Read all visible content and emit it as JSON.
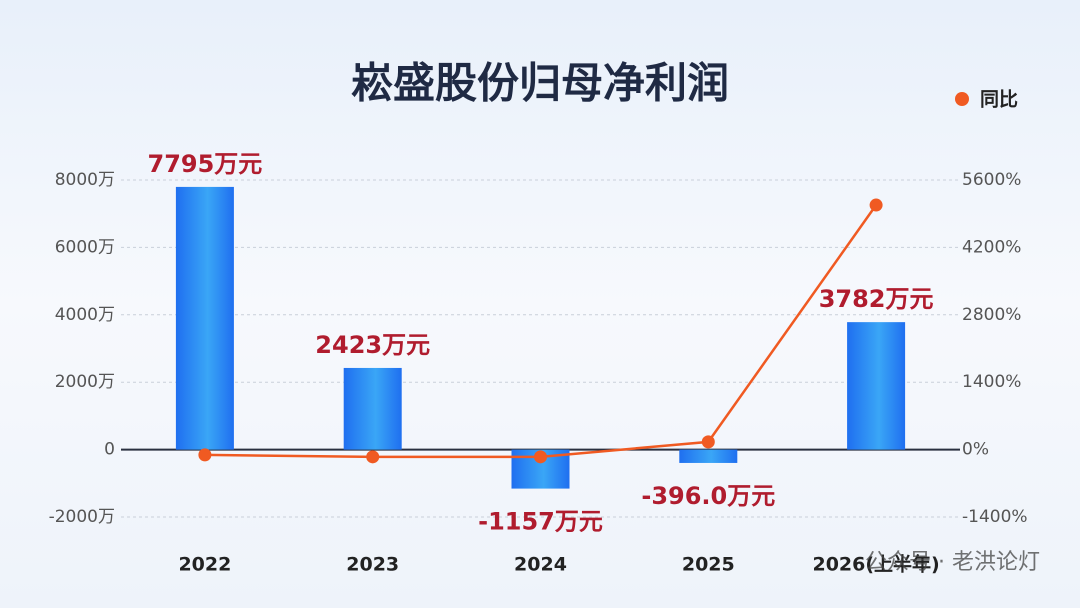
{
  "chart_data": {
    "type": "bar-line",
    "title": "崧盛股份归母净利润",
    "watermark": "公众号 · 老洪论灯",
    "categories": [
      "2022",
      "2023",
      "2024",
      "2025",
      "2026(上半年)"
    ],
    "series": [
      {
        "type": "bar",
        "color": "#1f6ff0",
        "values": [
          7795,
          2423,
          -1157,
          -396.0,
          3782
        ],
        "value_labels": [
          "7795万元",
          "2423万元",
          "-1157万元",
          "-396.0万元",
          "3782万元"
        ]
      },
      {
        "type": "line",
        "name": "同比",
        "color": "#f05a22",
        "axis": "y2",
        "values": [
          -110,
          -150,
          -150,
          160,
          5080
        ]
      }
    ],
    "ylim": [
      -2000,
      8000
    ],
    "yticks": [
      {
        "value": -2000,
        "label": "-2000万"
      },
      0,
      {
        "value": 2000,
        "label": "2000万"
      },
      {
        "value": 4000,
        "label": "4000万"
      },
      {
        "value": 6000,
        "label": "6000万"
      },
      {
        "value": 8000,
        "label": "8000万"
      }
    ],
    "y2lim": [
      -1400,
      5600
    ],
    "y2ticks": [
      {
        "value": -1400,
        "label": "-1400%"
      },
      {
        "value": 0,
        "label": "0%"
      },
      {
        "value": 1400,
        "label": "1400%"
      },
      {
        "value": 2800,
        "label": "2800%"
      },
      {
        "value": 4200,
        "label": "4200%"
      },
      {
        "value": 5600,
        "label": "5600%"
      }
    ],
    "grid": true,
    "legend": "top-right"
  }
}
